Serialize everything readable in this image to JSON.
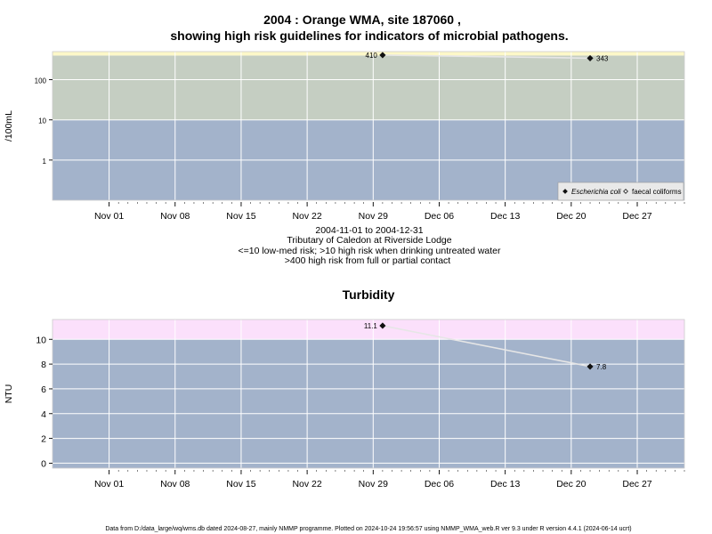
{
  "title_line1": "2004 : Orange WMA, site 187060 ,",
  "title_line2": "showing high risk guidelines for indicators of microbial pathogens.",
  "subtitle_lines": [
    "2004-11-01 to 2004-12-31",
    "Tributary of Caledon at Riverside Lodge",
    "<=10 low-med risk; >10 high risk when drinking untreated water",
    ">400 high risk from full or partial contact"
  ],
  "footer": "Data from D:/data_large/wq/wms.db dated 2024-08-27, mainly NMMP programme. Plotted on 2024-10-24 19:56:57 using NMMP_WMA_web.R ver 9.3 under R version 4.4.1 (2024-06-14 ucrt)",
  "colors": {
    "band_low": "#a3b3cb",
    "band_mid": "#c5cec2",
    "band_high": "#fdf8c8",
    "band_turb_high": "#fbe0fb",
    "grid": "#ffffff",
    "line": "#e6e6e6",
    "marker": "#111111"
  },
  "chart_data": [
    {
      "type": "line",
      "title": "",
      "ylabel": "/100mL",
      "y_scale": "log",
      "xlim": [
        "2004-10-26",
        "2005-01-01"
      ],
      "ylim": [
        0.1,
        500
      ],
      "x_ticks": [
        "2004-11-01",
        "2004-11-08",
        "2004-11-15",
        "2004-11-22",
        "2004-11-29",
        "2004-12-06",
        "2004-12-13",
        "2004-12-20",
        "2004-12-27"
      ],
      "x_tick_labels": [
        "Nov 01",
        "Nov 08",
        "Nov 15",
        "Nov 22",
        "Nov 29",
        "Dec 06",
        "Dec 13",
        "Dec 20",
        "Dec 27"
      ],
      "y_ticks": [
        1,
        10,
        100
      ],
      "y_tick_labels": [
        "1",
        "10",
        "100"
      ],
      "bands": [
        {
          "from": 0.1,
          "to": 10,
          "color": "band_low"
        },
        {
          "from": 10,
          "to": 400,
          "color": "band_mid"
        },
        {
          "from": 400,
          "to": 500,
          "color": "band_high"
        }
      ],
      "grid": true,
      "legend_position": "bottom-right",
      "series": [
        {
          "name": "Escherichia coli",
          "marker": "filled-diamond",
          "x": [
            "2004-11-30",
            "2004-12-22"
          ],
          "y": [
            410,
            343
          ],
          "point_labels": [
            "410",
            "343"
          ]
        },
        {
          "name": "faecal coliforms",
          "marker": "open-diamond",
          "x": [],
          "y": [],
          "point_labels": []
        }
      ]
    },
    {
      "type": "line",
      "title": "Turbidity",
      "ylabel": "NTU",
      "y_scale": "linear",
      "xlim": [
        "2004-10-26",
        "2005-01-01"
      ],
      "ylim": [
        -0.4,
        11.6
      ],
      "x_ticks": [
        "2004-11-01",
        "2004-11-08",
        "2004-11-15",
        "2004-11-22",
        "2004-11-29",
        "2004-12-06",
        "2004-12-13",
        "2004-12-20",
        "2004-12-27"
      ],
      "x_tick_labels": [
        "Nov 01",
        "Nov 08",
        "Nov 15",
        "Nov 22",
        "Nov 29",
        "Dec 06",
        "Dec 13",
        "Dec 20",
        "Dec 27"
      ],
      "y_ticks": [
        0,
        2,
        4,
        6,
        8,
        10
      ],
      "y_tick_labels": [
        "0",
        "2",
        "4",
        "6",
        "8",
        "10"
      ],
      "bands": [
        {
          "from": -0.4,
          "to": 10,
          "color": "band_low"
        },
        {
          "from": 10,
          "to": 11.6,
          "color": "band_turb_high"
        }
      ],
      "grid": true,
      "series": [
        {
          "name": "",
          "marker": "filled-diamond",
          "x": [
            "2004-11-30",
            "2004-12-22"
          ],
          "y": [
            11.1,
            7.8
          ],
          "point_labels": [
            "11.1",
            "7.8"
          ]
        }
      ]
    }
  ]
}
